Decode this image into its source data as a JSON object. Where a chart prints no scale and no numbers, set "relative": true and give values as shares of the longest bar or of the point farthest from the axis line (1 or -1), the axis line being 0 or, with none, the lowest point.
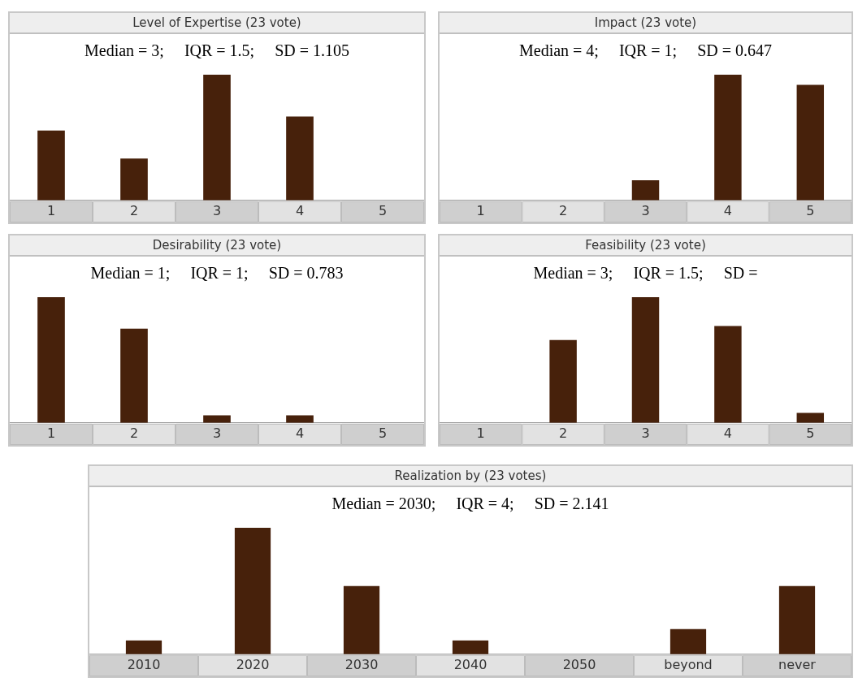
{
  "chart_data": [
    {
      "type": "bar",
      "title": "Level of Expertise (23 vote)",
      "subtitle": "Median = 3;     IQR = 1.5;     SD = 1.105",
      "categories": [
        "1",
        "2",
        "3",
        "4",
        "5"
      ],
      "values": [
        0.556,
        0.333,
        1,
        0.667,
        0
      ],
      "color": "#47210b",
      "relative": true
    },
    {
      "type": "bar",
      "title": "Impact (23 vote)",
      "subtitle": "Median = 4;     IQR = 1;     SD = 0.647",
      "categories": [
        "1",
        "2",
        "3",
        "4",
        "5"
      ],
      "values": [
        0,
        0,
        0.16,
        1,
        0.92
      ],
      "color": "#47210b",
      "relative": true
    },
    {
      "type": "bar",
      "title": "Desirability (23 vote)",
      "subtitle": "Median = 1;     IQR = 1;     SD = 0.783",
      "categories": [
        "1",
        "2",
        "3",
        "4",
        "5"
      ],
      "values": [
        1,
        0.75,
        0.06,
        0.06,
        0
      ],
      "color": "#47210b",
      "relative": true
    },
    {
      "type": "bar",
      "title": "Feasibility (23 vote)",
      "subtitle": "Median = 3;     IQR = 1.5;     SD =",
      "categories": [
        "1",
        "2",
        "3",
        "4",
        "5"
      ],
      "values": [
        0,
        0.66,
        1,
        0.77,
        0.08
      ],
      "color": "#47210b",
      "relative": true
    },
    {
      "type": "bar",
      "title": "Realization by (23 votes)",
      "subtitle": "Median = 2030;     IQR = 4;     SD = 2.141",
      "categories": [
        "2010",
        "2020",
        "2030",
        "2040",
        "2050",
        "beyond",
        "never"
      ],
      "values": [
        0.11,
        1,
        0.54,
        0.11,
        0,
        0.2,
        0.54
      ],
      "color": "#47210b",
      "relative": true
    }
  ]
}
